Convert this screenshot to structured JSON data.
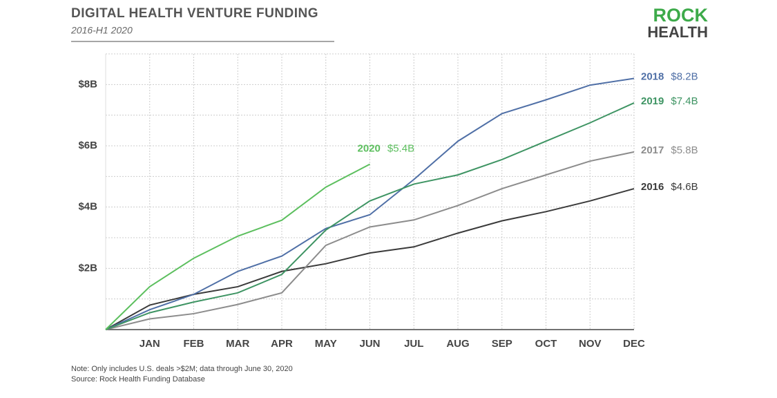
{
  "chart_data": {
    "type": "line",
    "title": "DIGITAL HEALTH VENTURE FUNDING",
    "subtitle": "2016-H1 2020",
    "logo": [
      "ROCK",
      "HEALTH"
    ],
    "notes": [
      "Note: Only includes U.S. deals >$2M; data through June 30, 2020",
      "Source: Rock Health Funding Database"
    ],
    "categories": [
      null,
      "JAN",
      "FEB",
      "MAR",
      "APR",
      "MAY",
      "JUN",
      "JUL",
      "AUG",
      "SEP",
      "OCT",
      "NOV",
      "DEC"
    ],
    "ylim": [
      0,
      9
    ],
    "yticks": [
      {
        "value": 2,
        "label": "$2B"
      },
      {
        "value": 4,
        "label": "$4B"
      },
      {
        "value": 6,
        "label": "$6B"
      },
      {
        "value": 8,
        "label": "$8B"
      }
    ],
    "minor_yticks": [
      1,
      3,
      5,
      7,
      9
    ],
    "grid": true,
    "series": [
      {
        "name": "2016",
        "color": "#3a3a3a",
        "values": [
          0,
          0.8,
          1.15,
          1.4,
          1.9,
          2.15,
          2.5,
          2.7,
          3.15,
          3.55,
          3.85,
          4.2,
          4.6
        ],
        "value_labels": [
          null,
          null,
          null,
          null,
          null,
          null,
          null,
          null,
          null,
          null,
          null,
          null,
          "$4.6B"
        ]
      },
      {
        "name": "2017",
        "color": "#8c8c8c",
        "values": [
          0,
          0.35,
          0.52,
          0.82,
          1.2,
          2.75,
          3.35,
          3.58,
          4.05,
          4.6,
          5.05,
          5.5,
          5.8
        ],
        "value_labels": [
          null,
          null,
          null,
          null,
          null,
          null,
          null,
          null,
          null,
          null,
          null,
          null,
          "$5.8B"
        ]
      },
      {
        "name": "2018",
        "color": "#4f6fa6",
        "values": [
          0,
          0.65,
          1.15,
          1.9,
          2.4,
          3.3,
          3.75,
          4.9,
          6.15,
          7.05,
          7.5,
          7.98,
          8.2
        ],
        "value_labels": [
          null,
          null,
          null,
          null,
          null,
          null,
          null,
          null,
          null,
          null,
          null,
          null,
          "$8.2B"
        ]
      },
      {
        "name": "2019",
        "color": "#3e9463",
        "values": [
          0,
          0.55,
          0.9,
          1.2,
          1.8,
          3.25,
          4.2,
          4.75,
          5.05,
          5.55,
          6.15,
          6.75,
          7.4
        ],
        "value_labels": [
          null,
          null,
          null,
          null,
          null,
          null,
          null,
          null,
          null,
          null,
          null,
          null,
          "$7.4B"
        ]
      },
      {
        "name": "2020",
        "color": "#5cbf5e",
        "values": [
          0,
          1.4,
          2.33,
          3.05,
          3.57,
          4.65,
          5.4,
          null,
          null,
          null,
          null,
          null,
          null
        ],
        "value_labels": [
          null,
          null,
          null,
          null,
          null,
          null,
          "$5.4B",
          null,
          null,
          null,
          null,
          null,
          null
        ]
      }
    ]
  }
}
